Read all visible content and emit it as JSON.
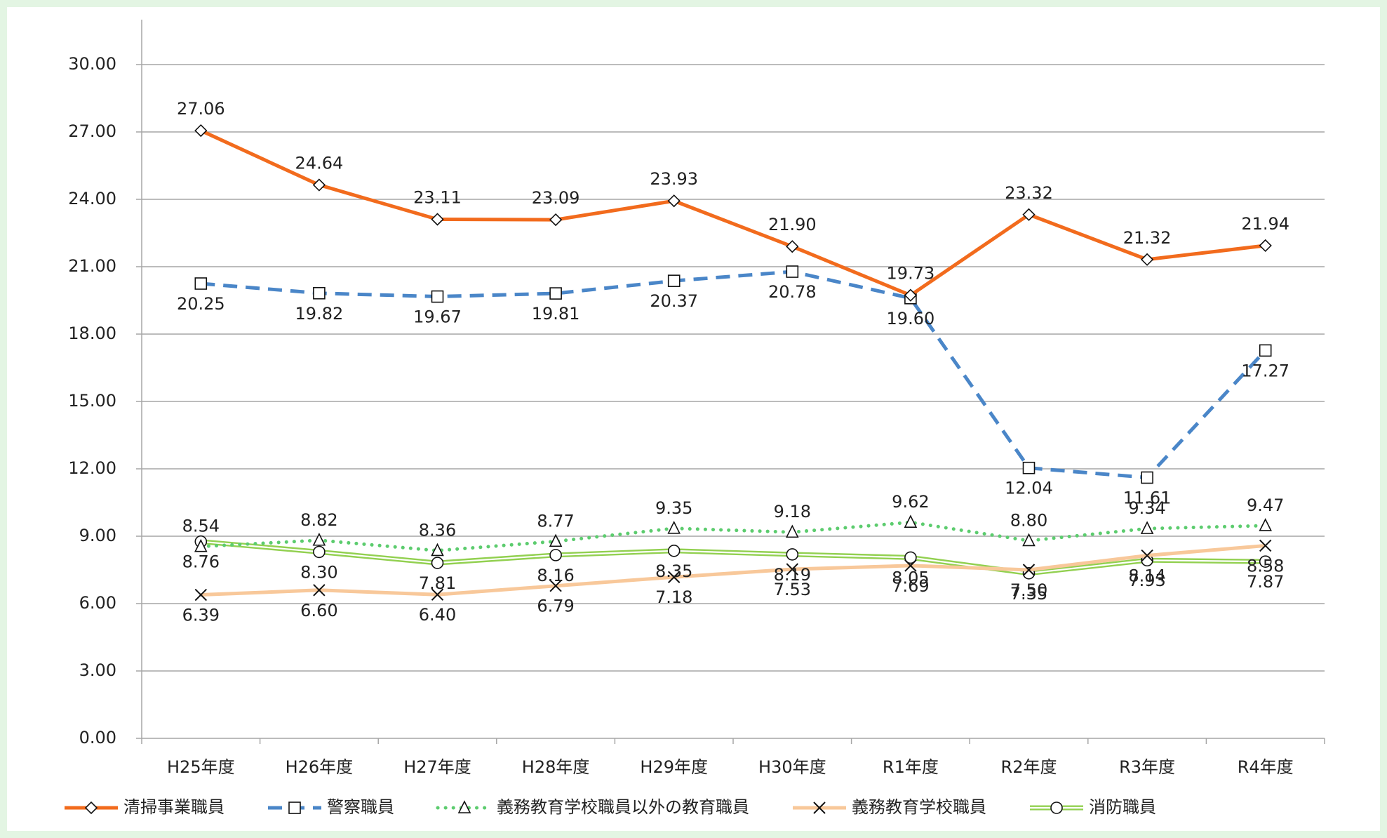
{
  "chart_data": {
    "type": "line",
    "categories": [
      "H25年度",
      "H26年度",
      "H27年度",
      "H28年度",
      "H29年度",
      "H30年度",
      "R1年度",
      "R2年度",
      "R3年度",
      "R4年度"
    ],
    "ylim": [
      0,
      30
    ],
    "yticks": [
      {
        "value": 0,
        "label": "0.00"
      },
      {
        "value": 3,
        "label": "3.00"
      },
      {
        "value": 6,
        "label": "6.00"
      },
      {
        "value": 9,
        "label": "9.00"
      },
      {
        "value": 12,
        "label": "12.00"
      },
      {
        "value": 15,
        "label": "15.00"
      },
      {
        "value": 18,
        "label": "18.00"
      },
      {
        "value": 21,
        "label": "21.00"
      },
      {
        "value": 24,
        "label": "24.00"
      },
      {
        "value": 27,
        "label": "27.00"
      },
      {
        "value": 30,
        "label": "30.00"
      }
    ],
    "grid": true,
    "series": [
      {
        "name": "清掃事業職員",
        "color": "#f26b1d",
        "style": "solid",
        "marker": "diamond",
        "values": [
          27.06,
          24.64,
          23.11,
          23.09,
          23.93,
          21.9,
          19.73,
          23.32,
          21.32,
          21.94
        ],
        "value_labels": [
          "27.06",
          "24.64",
          "23.11",
          "23.09",
          "23.93",
          "21.90",
          "19.73",
          "23.32",
          "21.32",
          "21.94"
        ]
      },
      {
        "name": "警察職員",
        "color": "#4a86c8",
        "style": "dashed",
        "marker": "square",
        "values": [
          20.25,
          19.82,
          19.67,
          19.81,
          20.37,
          20.78,
          19.6,
          12.04,
          11.61,
          17.27
        ],
        "value_labels": [
          "20.25",
          "19.82",
          "19.67",
          "19.81",
          "20.37",
          "20.78",
          "19.60",
          "12.04",
          "11.61",
          "17.27"
        ]
      },
      {
        "name": "義務教育学校職員以外の教育職員",
        "color": "#5ccc6e",
        "style": "dotted",
        "marker": "triangle",
        "values": [
          8.54,
          8.82,
          8.36,
          8.77,
          9.35,
          9.18,
          9.62,
          8.8,
          9.34,
          9.47
        ],
        "value_labels": [
          "8.54",
          "8.82",
          "8.36",
          "8.77",
          "9.35",
          "9.18",
          "9.62",
          "8.80",
          "9.34",
          "9.47"
        ]
      },
      {
        "name": "義務教育学校職員",
        "color": "#f8c89a",
        "style": "solid",
        "marker": "x",
        "values": [
          6.39,
          6.6,
          6.4,
          6.79,
          7.18,
          7.53,
          7.69,
          7.5,
          8.14,
          8.58
        ],
        "value_labels": [
          "6.39",
          "6.60",
          "6.40",
          "6.79",
          "7.18",
          "7.53",
          "7.69",
          "7.50",
          "8.14",
          "8.58"
        ]
      },
      {
        "name": "消防職員",
        "color": "#92d050",
        "style": "double",
        "marker": "circle",
        "values": [
          8.76,
          8.3,
          7.81,
          8.16,
          8.35,
          8.19,
          8.05,
          7.35,
          7.93,
          7.87
        ],
        "value_labels": [
          "8.76",
          "8.30",
          "7.81",
          "8.16",
          "8.35",
          "8.19",
          "8.05",
          "7.35",
          "7.93",
          "7.87"
        ]
      }
    ]
  }
}
